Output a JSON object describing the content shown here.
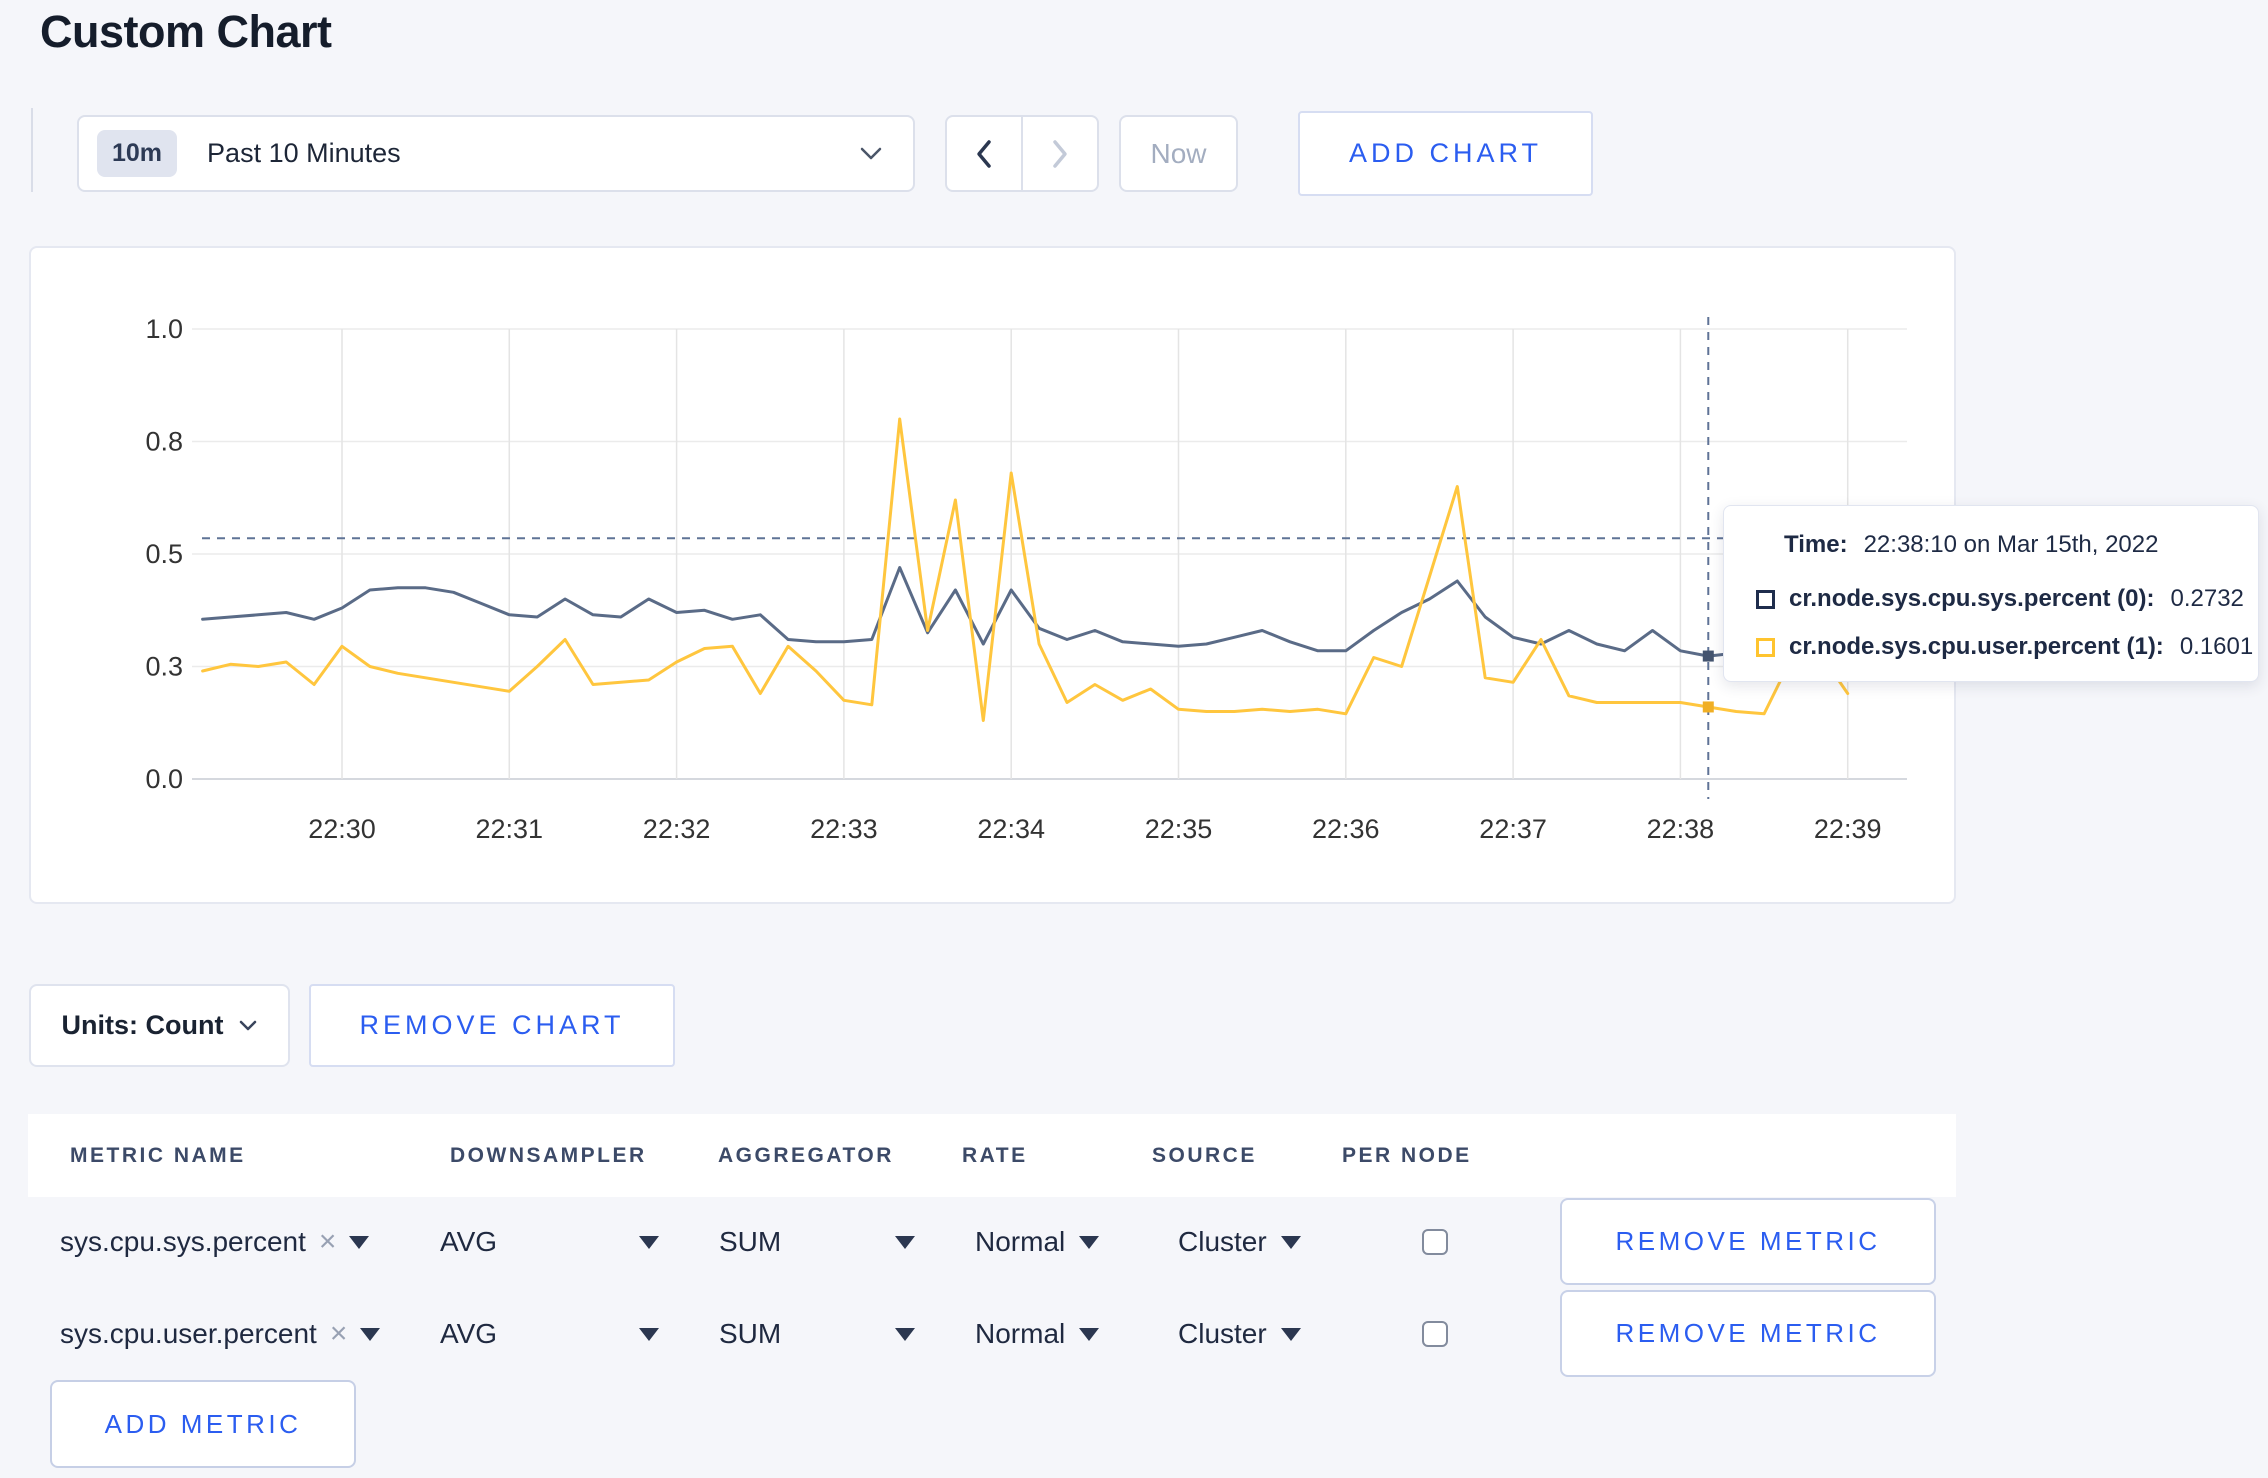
{
  "page": {
    "title": "Custom Chart"
  },
  "toolbar": {
    "time_badge": "10m",
    "time_label": "Past 10 Minutes",
    "now_label": "Now",
    "add_chart_label": "ADD CHART"
  },
  "chart_data": {
    "type": "line",
    "title": "",
    "xlabel": "",
    "ylabel": "",
    "ylim": [
      0,
      1
    ],
    "grid": true,
    "y_tick_values": [
      0,
      0.25,
      0.5,
      0.75,
      1
    ],
    "y_tick_labels": [
      "0.0",
      "0.3",
      "0.5",
      "0.8",
      "1.0"
    ],
    "x_tick_labels": [
      "22:30",
      "22:31",
      "22:32",
      "22:33",
      "22:34",
      "22:35",
      "22:36",
      "22:37",
      "22:38",
      "22:39"
    ],
    "first_point_time": "22:29:10",
    "point_interval_seconds": 10,
    "crosshair": {
      "index": 54,
      "time": "22:38:10",
      "y_value": 0.535
    },
    "series": [
      {
        "name": "cr.node.sys.cpu.sys.percent",
        "node": "(0)",
        "color": "#5a6b87",
        "dot_color": "#44546f",
        "highlight_value": 0.2732,
        "values": [
          0.355,
          0.36,
          0.365,
          0.37,
          0.355,
          0.38,
          0.42,
          0.425,
          0.425,
          0.415,
          0.39,
          0.365,
          0.36,
          0.4,
          0.365,
          0.36,
          0.4,
          0.37,
          0.375,
          0.355,
          0.365,
          0.31,
          0.305,
          0.305,
          0.31,
          0.47,
          0.325,
          0.42,
          0.3,
          0.42,
          0.335,
          0.31,
          0.33,
          0.305,
          0.3,
          0.295,
          0.3,
          0.315,
          0.33,
          0.305,
          0.285,
          0.285,
          0.33,
          0.37,
          0.4,
          0.44,
          0.36,
          0.315,
          0.3,
          0.33,
          0.3,
          0.285,
          0.33,
          0.285,
          0.2732,
          0.28,
          0.295,
          0.3,
          0.3,
          0.3
        ]
      },
      {
        "name": "cr.node.sys.cpu.user.percent",
        "node": "(1)",
        "color": "#ffc63e",
        "dot_color": "#f0af25",
        "highlight_value": 0.1601,
        "values": [
          0.24,
          0.255,
          0.25,
          0.26,
          0.21,
          0.295,
          0.25,
          0.235,
          0.225,
          0.215,
          0.205,
          0.195,
          0.25,
          0.31,
          0.21,
          0.215,
          0.22,
          0.26,
          0.29,
          0.295,
          0.19,
          0.295,
          0.24,
          0.175,
          0.165,
          0.8,
          0.33,
          0.62,
          0.13,
          0.68,
          0.3,
          0.17,
          0.21,
          0.175,
          0.2,
          0.155,
          0.15,
          0.15,
          0.155,
          0.15,
          0.155,
          0.145,
          0.27,
          0.25,
          0.45,
          0.65,
          0.225,
          0.215,
          0.31,
          0.185,
          0.17,
          0.17,
          0.17,
          0.17,
          0.1601,
          0.15,
          0.145,
          0.27,
          0.28,
          0.19
        ]
      }
    ]
  },
  "tooltip": {
    "time_label": "Time:",
    "time_value": "22:38:10 on Mar 15th, 2022",
    "entries": [
      {
        "label": "cr.node.sys.cpu.sys.percent (0):",
        "value": "0.2732",
        "swatch": "#1f2d4d"
      },
      {
        "label": "cr.node.sys.cpu.user.percent (1):",
        "value": "0.1601",
        "swatch": "#ffc42e"
      }
    ]
  },
  "units_bar": {
    "units_label": "Units: Count",
    "remove_chart_label": "REMOVE CHART"
  },
  "metrics_table": {
    "headers": [
      "METRIC NAME",
      "DOWNSAMPLER",
      "AGGREGATOR",
      "RATE",
      "SOURCE",
      "PER NODE"
    ],
    "rows": [
      {
        "metric_name": "sys.cpu.sys.percent",
        "downsampler": "AVG",
        "aggregator": "SUM",
        "rate": "Normal",
        "source": "Cluster",
        "per_node_checked": false,
        "remove_label": "REMOVE METRIC"
      },
      {
        "metric_name": "sys.cpu.user.percent",
        "downsampler": "AVG",
        "aggregator": "SUM",
        "rate": "Normal",
        "source": "Cluster",
        "per_node_checked": false,
        "remove_label": "REMOVE METRIC"
      }
    ],
    "add_metric_label": "ADD METRIC"
  }
}
